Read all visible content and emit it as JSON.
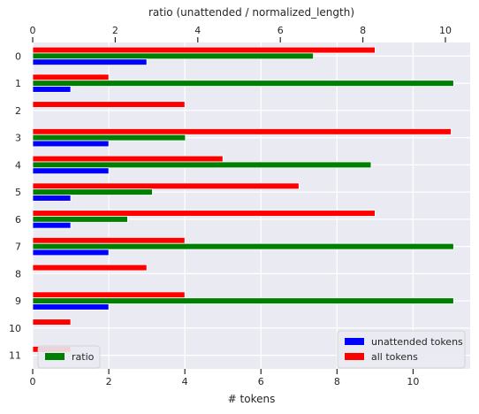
{
  "chart_data": {
    "type": "bar",
    "orientation": "horizontal",
    "categories": [
      "0",
      "1",
      "2",
      "3",
      "4",
      "5",
      "6",
      "7",
      "8",
      "9",
      "10",
      "11"
    ],
    "series": [
      {
        "name": "unattended tokens",
        "axis": "bottom",
        "color": "#0000ff",
        "values": [
          3,
          1,
          0,
          2,
          2,
          1,
          1,
          2,
          0,
          2,
          0,
          0
        ]
      },
      {
        "name": "ratio",
        "axis": "top",
        "color": "#008000",
        "values": [
          6.8,
          10.2,
          0,
          3.7,
          8.2,
          2.9,
          2.3,
          10.2,
          0,
          10.2,
          0,
          0
        ]
      },
      {
        "name": "all tokens",
        "axis": "bottom",
        "color": "#ff0000",
        "values": [
          9,
          2,
          4,
          11,
          5,
          7,
          9,
          4,
          3,
          4,
          1,
          1
        ]
      }
    ],
    "xlabel": "# tokens",
    "x2label": "ratio (unattended / normalized_length)",
    "xlim": [
      0,
      11.5
    ],
    "x2lim": [
      0,
      10.6
    ],
    "xticks": [
      0,
      2,
      4,
      6,
      8,
      10
    ],
    "x2ticks": [
      0,
      2,
      4,
      6,
      8,
      10
    ],
    "grid": true,
    "legends": [
      {
        "placement": "lower-left",
        "entries": [
          "ratio"
        ]
      },
      {
        "placement": "lower-right",
        "entries": [
          "unattended tokens",
          "all tokens"
        ]
      }
    ]
  }
}
